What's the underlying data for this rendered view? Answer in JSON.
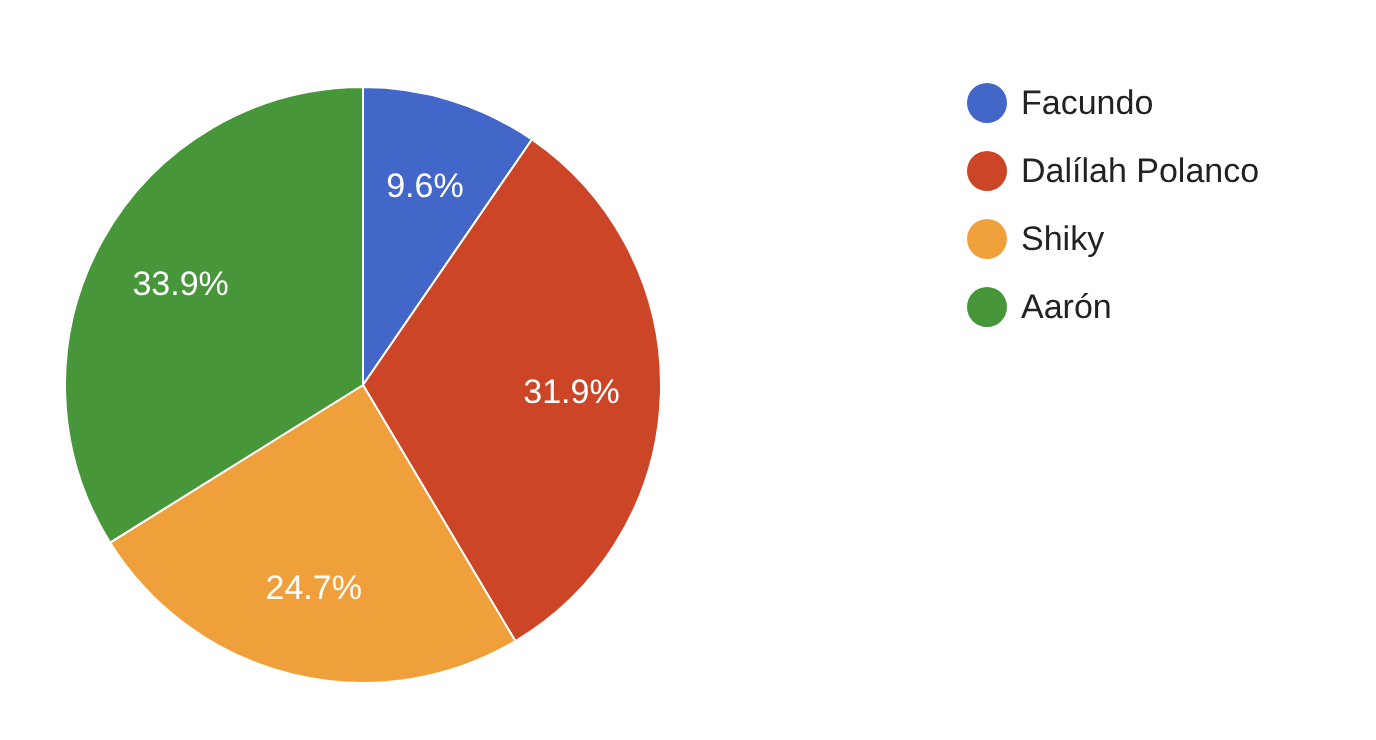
{
  "chart_data": {
    "type": "pie",
    "categories": [
      "Facundo",
      "Dalílah Polanco",
      "Shiky",
      "Aarón"
    ],
    "values": [
      9.6,
      31.9,
      24.7,
      33.9
    ],
    "colors": [
      "#4267c9",
      "#cc4527",
      "#f0a03a",
      "#47963a"
    ],
    "value_labels": [
      "9.6%",
      "31.9%",
      "24.7%",
      "33.9%"
    ],
    "legend": "right"
  }
}
